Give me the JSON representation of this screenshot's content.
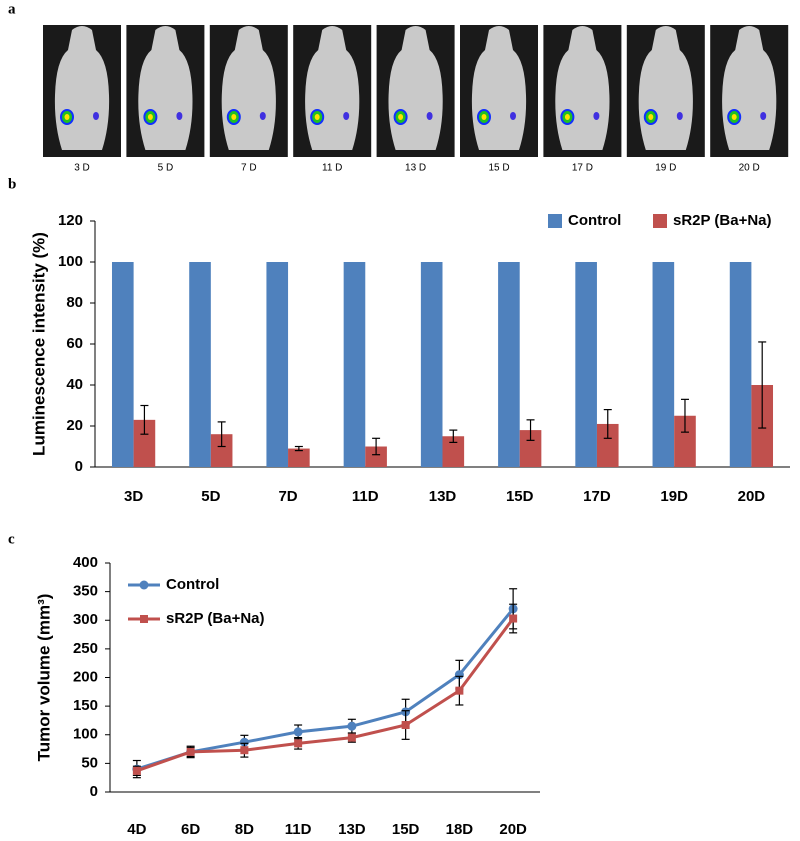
{
  "panel_a": {
    "label": "a",
    "captions": [
      "3 D",
      "5 D",
      "7 D",
      "11 D",
      "13 D",
      "15 D",
      "17 D",
      "19 D",
      "20 D"
    ]
  },
  "chart_data": [
    {
      "type": "bar",
      "panel_label": "b",
      "y_label": "Luminescence intensity (%)",
      "categories": [
        "3D",
        "5D",
        "7D",
        "11D",
        "13D",
        "15D",
        "17D",
        "19D",
        "20D"
      ],
      "series": [
        {
          "name": "Control",
          "color": "#4f81bd",
          "values": [
            100,
            100,
            100,
            100,
            100,
            100,
            100,
            100,
            100
          ]
        },
        {
          "name": "sR2P (Ba+Na)",
          "color": "#c0504d",
          "values": [
            23,
            16,
            9,
            10,
            15,
            18,
            21,
            25,
            40
          ],
          "errors": [
            7,
            6,
            1,
            4,
            3,
            5,
            7,
            8,
            21
          ]
        }
      ],
      "ylim": [
        0,
        120
      ],
      "yticks": [
        0,
        20,
        40,
        60,
        80,
        100,
        120
      ],
      "legend": "top-right"
    },
    {
      "type": "line",
      "panel_label": "c",
      "y_label": "Tumor  volume (mm³)",
      "categories": [
        "4D",
        "6D",
        "8D",
        "11D",
        "13D",
        "15D",
        "18D",
        "20D"
      ],
      "series": [
        {
          "name": "Control",
          "color": "#4f81bd",
          "marker": "circle",
          "values": [
            40,
            70,
            87,
            105,
            115,
            140,
            205,
            320
          ],
          "errors": [
            15,
            10,
            12,
            12,
            12,
            22,
            25,
            35
          ]
        },
        {
          "name": "sR2P (Ba+Na)",
          "color": "#c0504d",
          "marker": "square",
          "values": [
            37,
            70,
            73,
            85,
            95,
            117,
            177,
            303
          ],
          "errors": [
            8,
            8,
            12,
            10,
            8,
            25,
            25,
            25
          ]
        }
      ],
      "ylim": [
        0,
        400
      ],
      "yticks": [
        0,
        50,
        100,
        150,
        200,
        250,
        300,
        350,
        400
      ],
      "legend": "top-left"
    }
  ]
}
